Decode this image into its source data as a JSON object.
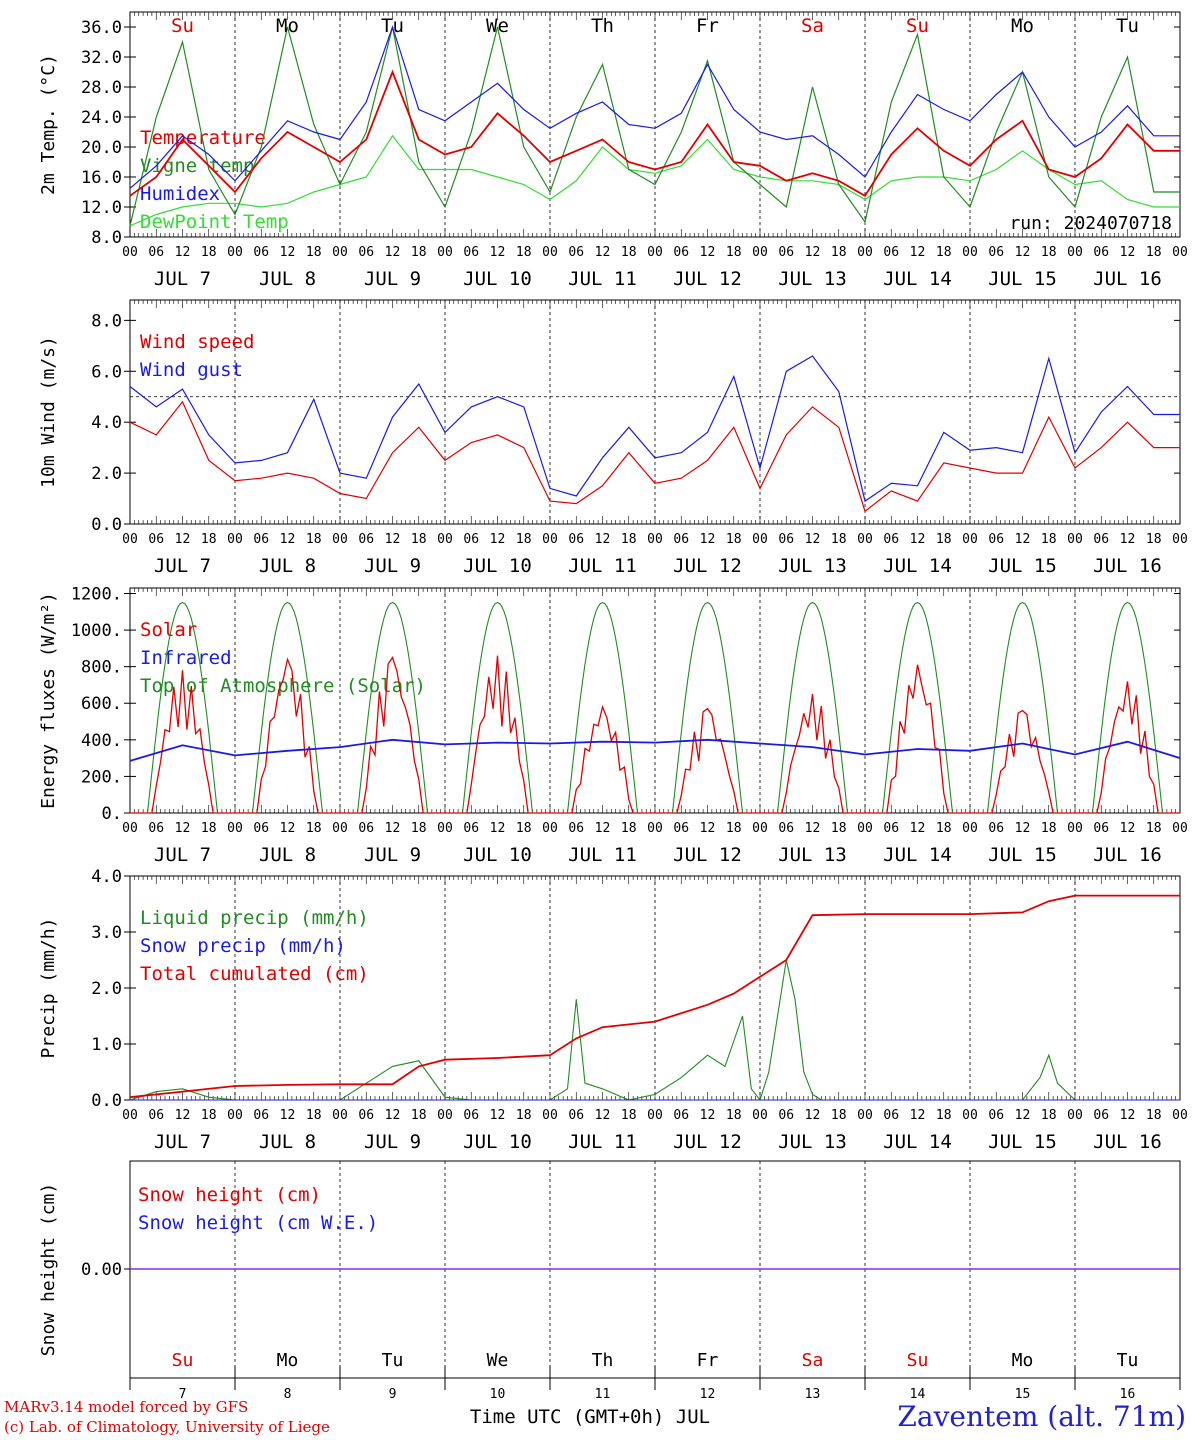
{
  "colors": {
    "red": "#e00000",
    "green": "#228b22",
    "lightgreen": "#33dd33",
    "blue": "#1a1ae6",
    "purple": "#8a2be2",
    "black": "#000000"
  },
  "time_axis": {
    "hour_labels": [
      "00",
      "06",
      "12",
      "18"
    ],
    "day_labels": [
      "JUL  7",
      "JUL  8",
      "JUL  9",
      "JUL 10",
      "JUL 11",
      "JUL 12",
      "JUL 13",
      "JUL 14",
      "JUL 15",
      "JUL 16"
    ],
    "days_of_week": [
      "Su",
      "Mo",
      "Tu",
      "We",
      "Th",
      "Fr",
      "Sa",
      "Su",
      "Mo",
      "Tu"
    ],
    "dow_red": [
      true,
      false,
      false,
      false,
      false,
      false,
      true,
      true,
      false,
      false
    ],
    "day_numbers": [
      "7",
      "8",
      "9",
      "10",
      "11",
      "12",
      "13",
      "14",
      "15",
      "16"
    ],
    "xlabel": "Time UTC (GMT+0h) JUL"
  },
  "footer": {
    "credit_line1": "MARv3.14 model forced by GFS",
    "credit_line2": "(c) Lab. of Climatology, University of Liege",
    "station": "Zaventem (alt. 71m)"
  },
  "chart_data": [
    {
      "type": "line",
      "ylabel": "2m Temp. (°C)",
      "ylim": [
        8,
        38
      ],
      "yticks": [
        "8.0",
        "12.0",
        "16.0",
        "20.0",
        "24.0",
        "28.0",
        "32.0",
        "36.0"
      ],
      "annotation": "run: 2024070718",
      "x_unit": "hours since JUL 7 00 UTC",
      "x": [
        0,
        6,
        12,
        18,
        24,
        30,
        36,
        42,
        48,
        54,
        60,
        66,
        72,
        78,
        84,
        90,
        96,
        102,
        108,
        114,
        120,
        126,
        132,
        138,
        144,
        150,
        156,
        162,
        168,
        174,
        180,
        186,
        192,
        198,
        204,
        210,
        216,
        222,
        228,
        234
      ],
      "series": [
        {
          "name": "Temperature",
          "color": "red",
          "values": [
            13.5,
            16,
            21,
            17.5,
            14,
            18.5,
            22,
            20,
            18,
            21,
            30,
            21,
            19,
            20,
            24.5,
            21.5,
            18,
            19.5,
            21,
            18,
            17,
            18,
            23,
            18,
            17.5,
            15.5,
            16.5,
            15.5,
            13.5,
            19,
            22.5,
            19.5,
            17.5,
            21,
            23.5,
            17,
            16,
            18.5,
            23,
            19.5
          ]
        },
        {
          "name": "Vigne temp",
          "color": "green",
          "values": [
            9.5,
            24,
            34,
            17,
            11,
            20,
            36,
            23,
            15,
            22,
            36,
            18,
            12,
            22,
            36,
            20,
            14,
            24,
            31,
            17,
            15,
            22,
            31.5,
            18,
            15,
            12,
            28,
            15,
            10,
            26,
            35,
            16,
            12,
            22,
            30,
            16,
            12,
            24,
            32,
            14
          ]
        },
        {
          "name": "Humidex",
          "color": "blue",
          "values": [
            14.5,
            17.5,
            21.5,
            19,
            15.5,
            19.5,
            23.5,
            22,
            21,
            26,
            36,
            25,
            23.5,
            26,
            28.5,
            25,
            22.5,
            24.5,
            26,
            23,
            22.5,
            24.5,
            31,
            25,
            22,
            21,
            21.5,
            19,
            16,
            22,
            27,
            25,
            23.5,
            27,
            30,
            24,
            20,
            22,
            25.5,
            21.5
          ]
        },
        {
          "name": "DewPoint Temp",
          "color": "lightgreen",
          "values": [
            9.5,
            11,
            12,
            12.5,
            12.5,
            12,
            12.5,
            14,
            15,
            16,
            21.5,
            17,
            17,
            17,
            16,
            15,
            13,
            15.5,
            20,
            17,
            16.5,
            17.5,
            21,
            17,
            16,
            15.5,
            15.5,
            15,
            13,
            15.5,
            16,
            16,
            15.5,
            17,
            19.5,
            17,
            15,
            15.5,
            13,
            12
          ]
        }
      ]
    },
    {
      "type": "line",
      "ylabel": "10m Wind (m/s)",
      "ylim": [
        0,
        8.8
      ],
      "yticks": [
        "0.0",
        "2.0",
        "4.0",
        "6.0",
        "8.0"
      ],
      "reference_line": 5.0,
      "x_unit": "hours since JUL 7 00 UTC",
      "x": [
        0,
        6,
        12,
        18,
        24,
        30,
        36,
        42,
        48,
        54,
        60,
        66,
        72,
        78,
        84,
        90,
        96,
        102,
        108,
        114,
        120,
        126,
        132,
        138,
        144,
        150,
        156,
        162,
        168,
        174,
        180,
        186,
        192,
        198,
        204,
        210,
        216,
        222,
        228,
        234
      ],
      "series": [
        {
          "name": "Wind speed",
          "color": "red",
          "values": [
            4.0,
            3.5,
            4.8,
            2.5,
            1.7,
            1.8,
            2.0,
            1.8,
            1.2,
            1.0,
            2.8,
            3.8,
            2.5,
            3.2,
            3.5,
            3.0,
            0.9,
            0.8,
            1.5,
            2.8,
            1.6,
            1.8,
            2.5,
            3.8,
            1.4,
            3.5,
            4.6,
            3.8,
            0.5,
            1.3,
            0.9,
            2.4,
            2.2,
            2.0,
            2.0,
            4.2,
            2.2,
            3.0,
            4.0,
            3.0
          ]
        },
        {
          "name": "Wind gust",
          "color": "blue",
          "values": [
            5.4,
            4.6,
            5.3,
            3.5,
            2.4,
            2.5,
            2.8,
            4.9,
            2.0,
            1.8,
            4.2,
            5.5,
            3.6,
            4.6,
            5.0,
            4.6,
            1.4,
            1.1,
            2.6,
            3.8,
            2.6,
            2.8,
            3.6,
            5.8,
            2.2,
            6.0,
            6.6,
            5.2,
            0.9,
            1.6,
            1.5,
            3.6,
            2.9,
            3.0,
            2.8,
            6.5,
            2.8,
            4.4,
            5.4,
            4.3
          ]
        }
      ]
    },
    {
      "type": "line",
      "ylabel": "Energy fluxes (W/m²)",
      "ylim": [
        0,
        1230
      ],
      "yticks": [
        "0.",
        "200.",
        "400.",
        "600.",
        "800.",
        "1000.",
        "1200."
      ],
      "x_unit": "hours since JUL 7 00 UTC",
      "toa_peak": 1150,
      "solar_peaks": [
        780,
        840,
        850,
        860,
        580,
        570,
        650,
        810,
        560,
        720
      ],
      "series": [
        {
          "name": "Solar",
          "color": "red"
        },
        {
          "name": "Infrared",
          "color": "blue",
          "x": [
            0,
            12,
            24,
            36,
            48,
            60,
            72,
            84,
            96,
            108,
            120,
            132,
            144,
            156,
            168,
            180,
            192,
            204,
            216,
            228,
            240
          ],
          "values": [
            285,
            370,
            315,
            340,
            360,
            400,
            375,
            385,
            380,
            390,
            385,
            400,
            380,
            360,
            320,
            350,
            340,
            380,
            320,
            390,
            300
          ]
        },
        {
          "name": "Top of Atmosphere (Solar)",
          "color": "green"
        }
      ]
    },
    {
      "type": "line",
      "ylabel": "Precip (mm/h)",
      "ylim": [
        0,
        4.0
      ],
      "yticks": [
        "0.0",
        "1.0",
        "2.0",
        "3.0",
        "4.0"
      ],
      "x_unit": "hours since JUL 7 00 UTC",
      "series": [
        {
          "name": "Liquid precip (mm/h)",
          "color": "green",
          "x": [
            0,
            6,
            12,
            18,
            24,
            36,
            48,
            60,
            66,
            72,
            78,
            96,
            100,
            102,
            104,
            108,
            114,
            120,
            126,
            132,
            136,
            140,
            142,
            144,
            146,
            150,
            152,
            154,
            156,
            158,
            160,
            164,
            168,
            204,
            208,
            210,
            212,
            216,
            240
          ],
          "values": [
            0,
            0.15,
            0.2,
            0.05,
            0,
            0,
            0,
            0.6,
            0.7,
            0.05,
            0,
            0,
            0.2,
            1.8,
            0.3,
            0.2,
            0,
            0.1,
            0.4,
            0.8,
            0.6,
            1.5,
            0.2,
            0,
            0.5,
            2.5,
            1.8,
            0.5,
            0.1,
            0,
            0,
            0,
            0,
            0,
            0.4,
            0.8,
            0.3,
            0,
            0
          ]
        },
        {
          "name": "Snow precip (mm/h)",
          "color": "blue"
        },
        {
          "name": "Total cumulated (cm)",
          "color": "red",
          "x": [
            0,
            12,
            24,
            36,
            48,
            60,
            66,
            72,
            84,
            96,
            102,
            108,
            120,
            132,
            138,
            144,
            150,
            156,
            168,
            192,
            204,
            210,
            216,
            240
          ],
          "values": [
            0.05,
            0.15,
            0.25,
            0.27,
            0.28,
            0.28,
            0.6,
            0.72,
            0.75,
            0.8,
            1.1,
            1.3,
            1.4,
            1.7,
            1.9,
            2.2,
            2.5,
            3.3,
            3.32,
            3.32,
            3.35,
            3.55,
            3.65,
            3.65
          ]
        }
      ]
    },
    {
      "type": "line",
      "ylabel": "Snow height (cm)",
      "yticks": [
        "0.00"
      ],
      "series": [
        {
          "name": "Snow height (cm)",
          "color": "red",
          "values": [
            0.0
          ]
        },
        {
          "name": "Snow height (cm W.E.)",
          "color": "blue",
          "values": [
            0.0
          ]
        }
      ]
    }
  ]
}
